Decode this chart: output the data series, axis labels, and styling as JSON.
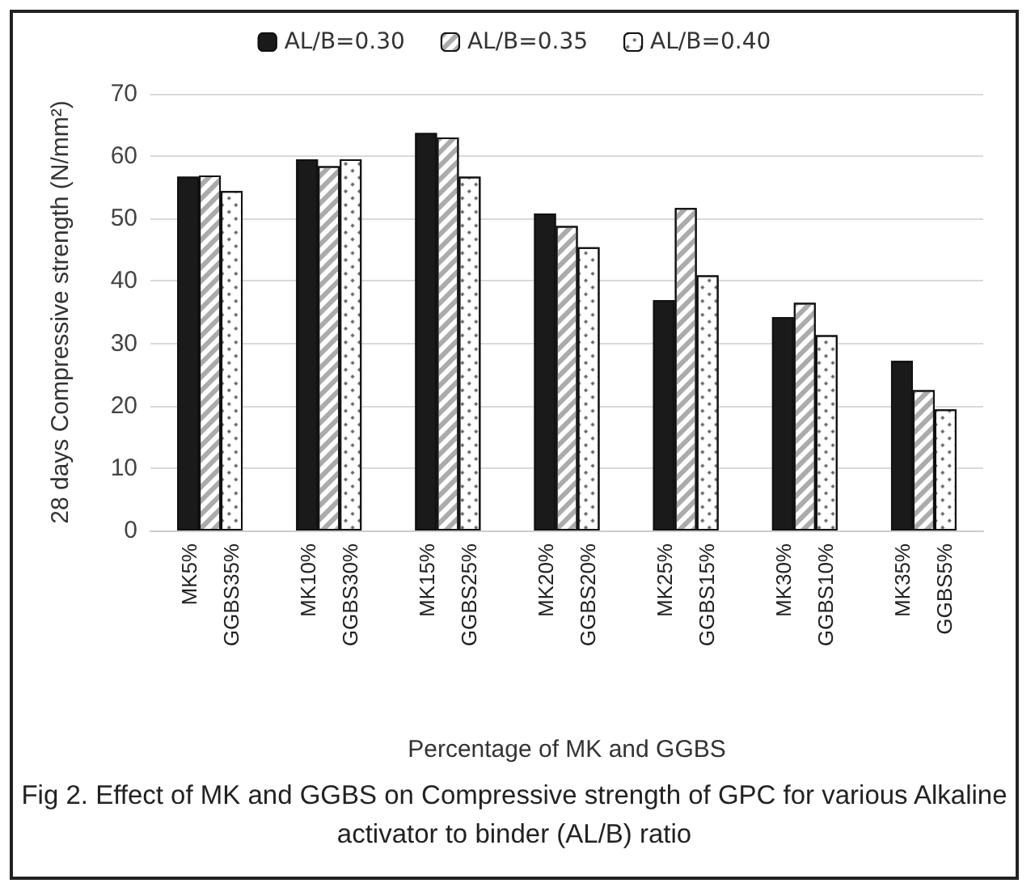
{
  "chart_data": {
    "type": "bar",
    "xlabel": "Percentage of MK and GGBS",
    "ylabel": "28 days Compressive strength (N/mm²)",
    "categories": [
      "MK5%\nGGBS35%",
      "MK10%\nGGBS30%",
      "MK15%\nGGBS25%",
      "MK20%\nGGBS20%",
      "MK25%\nGGBS15%",
      "MK30%\nGGBS10%",
      "MK35%\nGGBS5%"
    ],
    "series": [
      {
        "name": "AL/B=0.30",
        "color": "#1a1a1a",
        "values": [
          56.7,
          59.5,
          63.7,
          50.8,
          36.9,
          34.2,
          27.2
        ]
      },
      {
        "name": "AL/B=0.35",
        "color": "#ffffff",
        "values": [
          56.9,
          58.4,
          63,
          48.8,
          51.7,
          36.5,
          22.5
        ]
      },
      {
        "name": "AL/B=0.40",
        "color": "#ffffff",
        "values": [
          54.4,
          59.5,
          56.7,
          45.4,
          40.9,
          31.3,
          19.4
        ]
      }
    ],
    "ylim": [
      0,
      70
    ],
    "yticks": [
      0,
      10,
      20,
      30,
      40,
      50,
      60,
      70
    ],
    "grid": "y",
    "legend": "top",
    "annotations": [
      "Fig 2. Effect of MK and GGBS on Compressive strength of GPC for various Alkaline activator to binder (AL/B) ratio"
    ]
  }
}
